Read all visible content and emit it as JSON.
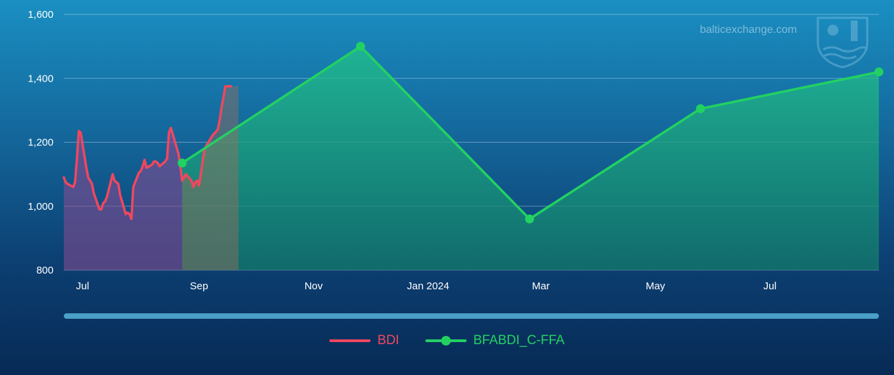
{
  "watermark": "balticexchange.com",
  "colors": {
    "bdi": "#f0475f",
    "ffa": "#22d162",
    "grid": "rgba(255,255,255,0.35)",
    "bdi_area": "rgba(140,75,145,0.55)",
    "ffa_area": "rgba(30,180,130,0.55)"
  },
  "legend": [
    {
      "name": "BDI",
      "color": "#f0475f",
      "marker": false
    },
    {
      "name": "BFABDI_C-FFA",
      "color": "#22d162",
      "marker": true
    }
  ],
  "icons": {
    "logo": "baltic-exchange-shield-icon"
  },
  "chart_data": {
    "type": "line",
    "x_type": "date",
    "xlim": [
      "2023-06-21",
      "2024-08-28"
    ],
    "ylim": [
      800,
      1600
    ],
    "yticks": [
      800,
      1000,
      1200,
      1400,
      1600
    ],
    "ytick_labels": [
      "800",
      "1,000",
      "1,200",
      "1,400",
      "1,600"
    ],
    "xticks": [
      {
        "date": "2023-07-01",
        "label": "Jul"
      },
      {
        "date": "2023-09-01",
        "label": "Sep"
      },
      {
        "date": "2023-11-01",
        "label": "Nov"
      },
      {
        "date": "2024-01-01",
        "label": "Jan 2024"
      },
      {
        "date": "2024-03-01",
        "label": "Mar"
      },
      {
        "date": "2024-05-01",
        "label": "May"
      },
      {
        "date": "2024-07-01",
        "label": "Jul"
      }
    ],
    "grid": true,
    "legend_position": "bottom",
    "series": [
      {
        "name": "BDI",
        "x": [
          "2023-06-21",
          "2023-06-22",
          "2023-06-23",
          "2023-06-26",
          "2023-06-27",
          "2023-06-28",
          "2023-06-29",
          "2023-06-30",
          "2023-07-03",
          "2023-07-04",
          "2023-07-05",
          "2023-07-06",
          "2023-07-07",
          "2023-07-10",
          "2023-07-11",
          "2023-07-12",
          "2023-07-13",
          "2023-07-14",
          "2023-07-17",
          "2023-07-18",
          "2023-07-19",
          "2023-07-20",
          "2023-07-21",
          "2023-07-24",
          "2023-07-25",
          "2023-07-26",
          "2023-07-27",
          "2023-07-28",
          "2023-07-31",
          "2023-08-01",
          "2023-08-02",
          "2023-08-03",
          "2023-08-04",
          "2023-08-07",
          "2023-08-08",
          "2023-08-09",
          "2023-08-10",
          "2023-08-11",
          "2023-08-14",
          "2023-08-15",
          "2023-08-16",
          "2023-08-17",
          "2023-08-18",
          "2023-08-21",
          "2023-08-22",
          "2023-08-23",
          "2023-08-24",
          "2023-08-25",
          "2023-08-28",
          "2023-08-29",
          "2023-08-30",
          "2023-08-31",
          "2023-09-01",
          "2023-09-04",
          "2023-09-05",
          "2023-09-06",
          "2023-09-07",
          "2023-09-08",
          "2023-09-11",
          "2023-09-12",
          "2023-09-13",
          "2023-09-14",
          "2023-09-15",
          "2023-09-18"
        ],
        "y": [
          1090,
          1075,
          1070,
          1060,
          1075,
          1150,
          1235,
          1230,
          1120,
          1090,
          1080,
          1070,
          1040,
          990,
          990,
          1010,
          1015,
          1030,
          1100,
          1080,
          1075,
          1070,
          1035,
          975,
          980,
          975,
          960,
          1060,
          1105,
          1110,
          1125,
          1145,
          1120,
          1130,
          1140,
          1140,
          1135,
          1125,
          1140,
          1150,
          1230,
          1245,
          1225,
          1165,
          1130,
          1080,
          1090,
          1100,
          1080,
          1060,
          1075,
          1080,
          1065,
          1180,
          1190,
          1200,
          1210,
          1220,
          1240,
          1270,
          1310,
          1340,
          1375,
          1375
        ]
      },
      {
        "name": "BFABDI_C-FFA",
        "x": [
          "2023-08-23",
          "2023-11-26",
          "2024-02-24",
          "2024-05-25",
          "2024-08-28"
        ],
        "y": [
          1135,
          1500,
          960,
          1305,
          1420
        ]
      }
    ],
    "shaded_regions": [
      {
        "from": "2023-06-21",
        "to": "2023-08-23",
        "color": "rgba(140,75,145,0.55)"
      },
      {
        "from": "2023-08-23",
        "to": "2023-09-22",
        "color": "rgba(150,110,90,0.45)"
      }
    ]
  }
}
